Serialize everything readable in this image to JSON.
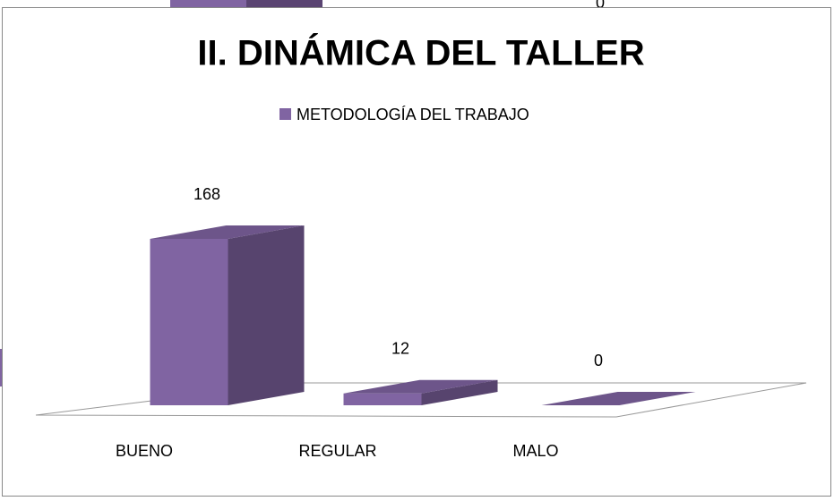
{
  "chart_data": {
    "type": "bar3d",
    "title": "II. DINÁMICA  DEL TALLER",
    "categories": [
      "BUENO",
      "REGULAR",
      "MALO"
    ],
    "series": [
      {
        "name": "METODOLOGÍA DEL TRABAJO",
        "color": "#8064a2",
        "values": [
          168,
          12,
          0
        ]
      }
    ],
    "legend": "top"
  },
  "fragment_label": "0"
}
